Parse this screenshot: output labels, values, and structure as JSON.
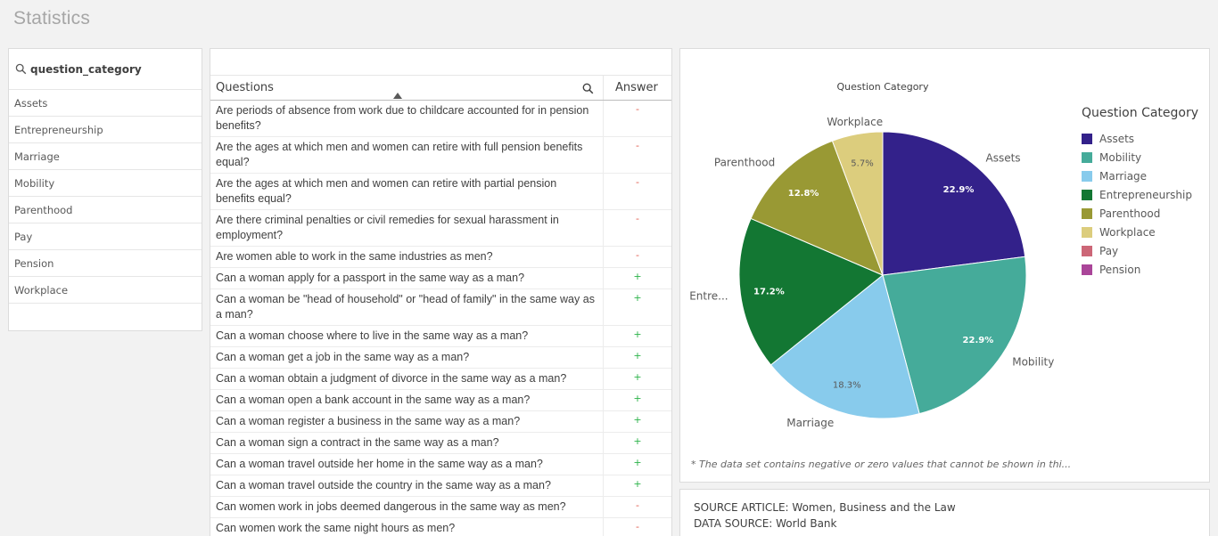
{
  "page": {
    "title": "Statistics"
  },
  "filter": {
    "title": "question_category",
    "items": [
      "Assets",
      "Entrepreneurship",
      "Marriage",
      "Mobility",
      "Parenthood",
      "Pay",
      "Pension",
      "Workplace"
    ]
  },
  "table": {
    "col_questions": "Questions",
    "col_answer": "Answer",
    "rows": [
      {
        "q": "Are periods of absence from work due to childcare accounted for in pension benefits?",
        "a": "-"
      },
      {
        "q": "Are the ages at which men and women can retire with full pension benefits equal?",
        "a": "-"
      },
      {
        "q": "Are the ages at which men and women can retire with partial pension benefits equal?",
        "a": "-"
      },
      {
        "q": "Are there criminal penalties or civil remedies for sexual harassment in employment?",
        "a": "-"
      },
      {
        "q": "Are women able to work in the same industries as men?",
        "a": "-"
      },
      {
        "q": "Can a woman apply for a passport in the same way as a man?",
        "a": "+"
      },
      {
        "q": "Can a woman be \"head of household\" or \"head of family\" in the same way as a man?",
        "a": "+"
      },
      {
        "q": "Can a woman choose where to live in the same way as a man?",
        "a": "+"
      },
      {
        "q": "Can a woman get a job in the same way as a man?",
        "a": "+"
      },
      {
        "q": "Can a woman obtain a judgment of divorce in the same way as a man?",
        "a": "+"
      },
      {
        "q": "Can a woman open a bank account in the same way as a man?",
        "a": "+"
      },
      {
        "q": "Can a woman register a business in the same way as a man?",
        "a": "+"
      },
      {
        "q": "Can a woman sign a contract in the same way as a man?",
        "a": "+"
      },
      {
        "q": "Can a woman travel outside her home in the same way as a man?",
        "a": "+"
      },
      {
        "q": "Can a woman travel outside the country in the same way as a man?",
        "a": "+"
      },
      {
        "q": "Can women work in jobs deemed dangerous in the same way as men?",
        "a": "-"
      },
      {
        "q": "Can women work the same night hours as men?",
        "a": "-"
      }
    ]
  },
  "chart_data": {
    "type": "pie",
    "title": "Question Category",
    "legend_title": "Question Category",
    "legend_position": "right",
    "legend": [
      {
        "label": "Assets",
        "color": "#33218a"
      },
      {
        "label": "Mobility",
        "color": "#45ab9a"
      },
      {
        "label": "Marriage",
        "color": "#88cbec"
      },
      {
        "label": "Entrepreneurship",
        "color": "#137733"
      },
      {
        "label": "Parenthood",
        "color": "#999934"
      },
      {
        "label": "Workplace",
        "color": "#dccd7d"
      },
      {
        "label": "Pay",
        "color": "#cc6677"
      },
      {
        "label": "Pension",
        "color": "#aa4599"
      }
    ],
    "slices": [
      {
        "label": "Assets",
        "value": 22.9,
        "pct": "22.9%",
        "color": "#33218a"
      },
      {
        "label": "Mobility",
        "value": 22.9,
        "pct": "22.9%",
        "color": "#45ab9a"
      },
      {
        "label": "Marriage",
        "value": 18.3,
        "pct": "18.3%",
        "color": "#88cbec"
      },
      {
        "label": "Entre...",
        "value": 17.2,
        "pct": "17.2%",
        "color": "#137733"
      },
      {
        "label": "Parenthood",
        "value": 12.8,
        "pct": "12.8%",
        "color": "#999934"
      },
      {
        "label": "Workplace",
        "value": 5.7,
        "pct": "5.7%",
        "color": "#dccd7d"
      }
    ],
    "footnote": "* The data set contains negative or zero values that cannot be shown in thi..."
  },
  "source": {
    "article": "SOURCE ARTICLE: Women, Business and the Law",
    "data": "DATA SOURCE: World Bank"
  }
}
